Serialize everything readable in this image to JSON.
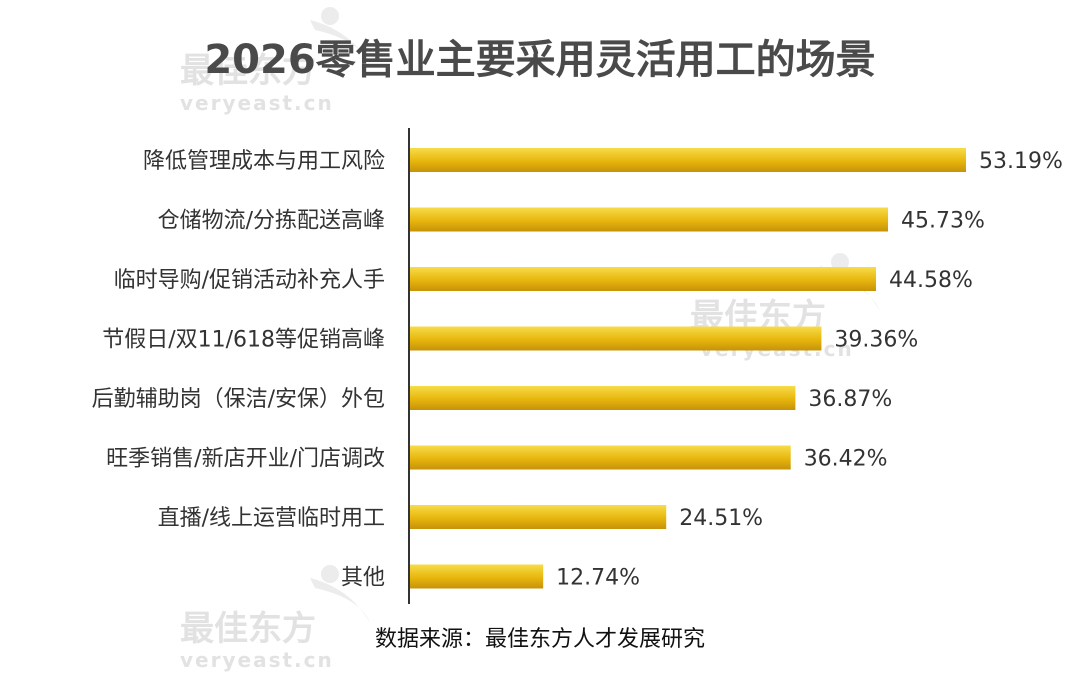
{
  "watermark": {
    "cn": "最佳东方",
    "en": "veryeast.cn"
  },
  "colors": {
    "bar_light": "#f7dc4a",
    "bar_mid": "#e7b60d",
    "bar_dark": "#c6920a",
    "axis": "#333333"
  },
  "chart_data": {
    "type": "bar",
    "orientation": "horizontal",
    "title": "2026零售业主要采用灵活用工的场景",
    "categories": [
      "降低管理成本与用工风险",
      "仓储物流/分拣配送高峰",
      "临时导购/促销活动补充人手",
      "节假日/双11/618等促销高峰",
      "后勤辅助岗（保洁/安保）外包",
      "旺季销售/新店开业/门店调改",
      "直播/线上运营临时用工",
      "其他"
    ],
    "values": [
      53.19,
      45.73,
      44.58,
      39.36,
      36.87,
      36.42,
      24.51,
      12.74
    ],
    "value_labels": [
      "53.19%",
      "45.73%",
      "44.58%",
      "39.36%",
      "36.87%",
      "36.42%",
      "24.51%",
      "12.74%"
    ],
    "unit": "%",
    "xlim": [
      0,
      53.19
    ],
    "grid": false,
    "legend": "none",
    "source": "数据来源：最佳东方人才发展研究"
  }
}
